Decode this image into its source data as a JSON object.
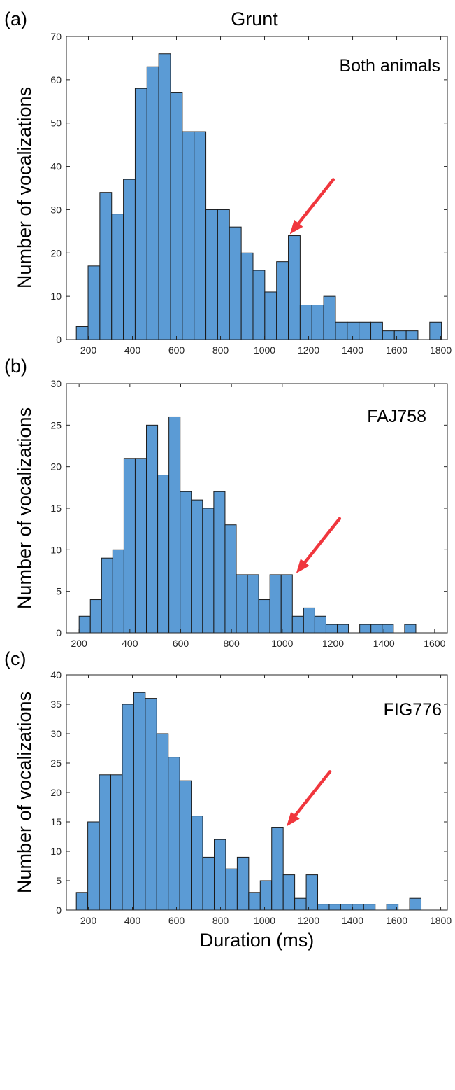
{
  "figure": {
    "title": "Grunt",
    "bar_color": "#5B9BD5",
    "bar_edge_color": "#1A1A1A",
    "arrow_color": "#F0363D"
  },
  "chart_data": [
    {
      "type": "bar",
      "panel_tag": "(a)",
      "label": "Both animals",
      "title": "Grunt",
      "xlabel": "",
      "ylabel": "Number of vocalizations",
      "xlim": [
        100,
        1830
      ],
      "ylim": [
        0,
        70
      ],
      "xticks": [
        200,
        400,
        600,
        800,
        1000,
        1200,
        1400,
        1600,
        1800
      ],
      "yticks": [
        0,
        10,
        20,
        30,
        40,
        50,
        60,
        70
      ],
      "bin_start": 145,
      "bin_width": 53.5,
      "values": [
        3,
        17,
        34,
        29,
        37,
        58,
        63,
        66,
        57,
        48,
        48,
        30,
        30,
        26,
        20,
        16,
        11,
        18,
        24,
        8,
        8,
        10,
        4,
        4,
        4,
        4,
        2,
        2,
        2,
        0,
        4
      ],
      "arrow_tip": {
        "x": 1115,
        "y": 24
      },
      "grid": false
    },
    {
      "type": "bar",
      "panel_tag": "(b)",
      "label": "FAJ758",
      "xlabel": "",
      "ylabel": "Number of vocalizations",
      "xlim": [
        150,
        1650
      ],
      "ylim": [
        0,
        30
      ],
      "xticks": [
        200,
        400,
        600,
        800,
        1000,
        1200,
        1400,
        1600
      ],
      "yticks": [
        0,
        5,
        10,
        15,
        20,
        25,
        30
      ],
      "bin_start": 200,
      "bin_width": 44.2,
      "values": [
        2,
        4,
        9,
        10,
        21,
        21,
        25,
        19,
        26,
        17,
        16,
        15,
        17,
        13,
        7,
        7,
        4,
        7,
        7,
        2,
        3,
        2,
        1,
        1,
        0,
        1,
        1,
        1,
        0,
        1
      ],
      "arrow_tip": {
        "x": 1055,
        "y": 7
      },
      "grid": false
    },
    {
      "type": "bar",
      "panel_tag": "(c)",
      "label": "FIG776",
      "xlabel": "Duration (ms)",
      "ylabel": "Number of vocalizations",
      "xlim": [
        100,
        1830
      ],
      "ylim": [
        0,
        40
      ],
      "xticks": [
        200,
        400,
        600,
        800,
        1000,
        1200,
        1400,
        1600,
        1800
      ],
      "yticks": [
        0,
        5,
        10,
        15,
        20,
        25,
        30,
        35,
        40
      ],
      "bin_start": 145,
      "bin_width": 52.2,
      "values": [
        3,
        15,
        23,
        23,
        35,
        37,
        36,
        30,
        26,
        22,
        16,
        9,
        12,
        7,
        9,
        3,
        5,
        14,
        6,
        2,
        6,
        1,
        1,
        1,
        1,
        1,
        0,
        1,
        0,
        2
      ],
      "arrow_tip": {
        "x": 1100,
        "y": 14
      },
      "grid": false
    }
  ]
}
